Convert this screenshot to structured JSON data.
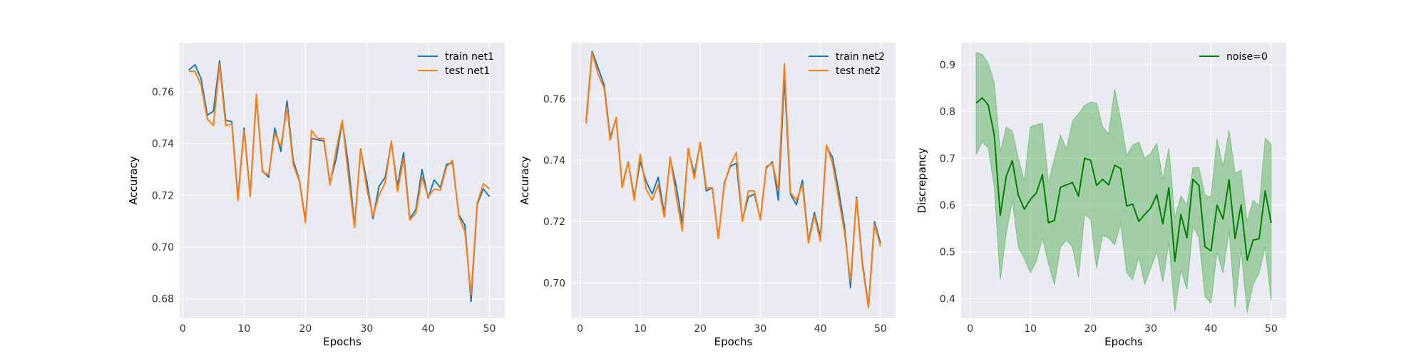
{
  "chart_data": [
    {
      "type": "line",
      "xlabel": "Epochs",
      "ylabel": "Accuracy",
      "xlim": [
        -0.5,
        52.5
      ],
      "ylim": [
        0.6725,
        0.779
      ],
      "xticks": [
        0,
        10,
        20,
        30,
        40,
        50
      ],
      "yticks": [
        0.68,
        0.7,
        0.72,
        0.74,
        0.76
      ],
      "grid": true,
      "legend": "top-right",
      "x": [
        1,
        2,
        3,
        4,
        5,
        6,
        7,
        8,
        9,
        10,
        11,
        12,
        13,
        14,
        15,
        16,
        17,
        18,
        19,
        20,
        21,
        22,
        23,
        24,
        25,
        26,
        27,
        28,
        29,
        30,
        31,
        32,
        33,
        34,
        35,
        36,
        37,
        38,
        39,
        40,
        41,
        42,
        43,
        44,
        45,
        46,
        47,
        48,
        49,
        50
      ],
      "series": [
        {
          "name": "train net1",
          "color": "#1f77b4",
          "values": [
            0.7685,
            0.7705,
            0.765,
            0.751,
            0.7525,
            0.772,
            0.749,
            0.7485,
            0.719,
            0.746,
            0.72,
            0.758,
            0.7295,
            0.727,
            0.746,
            0.737,
            0.7565,
            0.7335,
            0.726,
            0.7105,
            0.742,
            0.7415,
            0.741,
            0.725,
            0.734,
            0.7485,
            0.732,
            0.7085,
            0.7375,
            0.7255,
            0.711,
            0.7235,
            0.727,
            0.7405,
            0.7235,
            0.7365,
            0.711,
            0.7145,
            0.73,
            0.719,
            0.726,
            0.723,
            0.732,
            0.7325,
            0.7125,
            0.7085,
            0.679,
            0.7165,
            0.7225,
            0.7195
          ]
        },
        {
          "name": "test net1",
          "color": "#ff7f0e",
          "values": [
            0.768,
            0.768,
            0.7625,
            0.7495,
            0.747,
            0.7705,
            0.747,
            0.7475,
            0.718,
            0.745,
            0.7195,
            0.759,
            0.729,
            0.728,
            0.744,
            0.739,
            0.754,
            0.732,
            0.7255,
            0.7095,
            0.745,
            0.742,
            0.742,
            0.724,
            0.7375,
            0.749,
            0.7275,
            0.7075,
            0.738,
            0.7225,
            0.712,
            0.72,
            0.725,
            0.741,
            0.7215,
            0.7345,
            0.7105,
            0.713,
            0.727,
            0.7195,
            0.7225,
            0.722,
            0.731,
            0.7335,
            0.712,
            0.706,
            0.6815,
            0.717,
            0.7245,
            0.7225
          ]
        }
      ]
    },
    {
      "type": "line",
      "xlabel": "Epochs",
      "ylabel": "Accuracy",
      "xlim": [
        -1.5,
        52.5
      ],
      "ylim": [
        0.6885,
        0.7783
      ],
      "xticks": [
        0,
        10,
        20,
        30,
        40,
        50
      ],
      "yticks": [
        0.7,
        0.72,
        0.74,
        0.76
      ],
      "grid": true,
      "legend": "top-right",
      "x": [
        1,
        2,
        3,
        4,
        5,
        6,
        7,
        8,
        9,
        10,
        11,
        12,
        13,
        14,
        15,
        16,
        17,
        18,
        19,
        20,
        21,
        22,
        23,
        24,
        25,
        26,
        27,
        28,
        29,
        30,
        31,
        32,
        33,
        34,
        35,
        36,
        37,
        38,
        39,
        40,
        41,
        42,
        43,
        44,
        45,
        46,
        47,
        48,
        49,
        50
      ],
      "series": [
        {
          "name": "train net2",
          "color": "#1f77b4",
          "values": [
            0.753,
            0.7755,
            0.77,
            0.7645,
            0.7475,
            0.7535,
            0.7315,
            0.7395,
            0.728,
            0.7395,
            0.733,
            0.729,
            0.7345,
            0.7225,
            0.7405,
            0.7315,
            0.7195,
            0.7435,
            0.7355,
            0.7455,
            0.73,
            0.731,
            0.7145,
            0.7325,
            0.738,
            0.739,
            0.7205,
            0.728,
            0.729,
            0.721,
            0.7375,
            0.7395,
            0.727,
            0.767,
            0.729,
            0.7255,
            0.7335,
            0.7135,
            0.723,
            0.715,
            0.7445,
            0.741,
            0.7305,
            0.7185,
            0.6985,
            0.728,
            0.7065,
            0.6925,
            0.72,
            0.713
          ]
        },
        {
          "name": "test net2",
          "color": "#ff7f0e",
          "values": [
            0.752,
            0.775,
            0.768,
            0.7635,
            0.7465,
            0.754,
            0.731,
            0.7395,
            0.727,
            0.742,
            0.7305,
            0.727,
            0.732,
            0.7215,
            0.741,
            0.728,
            0.717,
            0.744,
            0.734,
            0.746,
            0.731,
            0.731,
            0.7145,
            0.732,
            0.7385,
            0.7425,
            0.72,
            0.73,
            0.73,
            0.7205,
            0.738,
            0.739,
            0.7305,
            0.7715,
            0.7295,
            0.727,
            0.732,
            0.713,
            0.722,
            0.7135,
            0.745,
            0.739,
            0.728,
            0.7165,
            0.7005,
            0.7275,
            0.7055,
            0.692,
            0.719,
            0.712
          ]
        }
      ]
    },
    {
      "type": "area",
      "xlabel": "Epochs",
      "ylabel": "Discrepancy",
      "xlim": [
        -1.5,
        52.5
      ],
      "ylim": [
        0.358,
        0.947
      ],
      "xticks": [
        0,
        10,
        20,
        30,
        40,
        50
      ],
      "yticks": [
        0.4,
        0.5,
        0.6,
        0.7,
        0.8,
        0.9
      ],
      "grid": true,
      "legend": "top-right",
      "x": [
        1,
        2,
        3,
        4,
        5,
        6,
        7,
        8,
        9,
        10,
        11,
        12,
        13,
        14,
        15,
        16,
        17,
        18,
        19,
        20,
        21,
        22,
        23,
        24,
        25,
        26,
        27,
        28,
        29,
        30,
        31,
        32,
        33,
        34,
        35,
        36,
        37,
        38,
        39,
        40,
        41,
        42,
        43,
        44,
        45,
        46,
        47,
        48,
        49,
        50
      ],
      "series": [
        {
          "name": "noise=0",
          "color": "#008000",
          "band_color": "#2ca02c",
          "values": [
            0.818,
            0.829,
            0.814,
            0.75,
            0.578,
            0.662,
            0.695,
            0.621,
            0.591,
            0.612,
            0.626,
            0.665,
            0.562,
            0.567,
            0.638,
            0.643,
            0.648,
            0.619,
            0.7,
            0.696,
            0.642,
            0.655,
            0.643,
            0.685,
            0.678,
            0.598,
            0.602,
            0.565,
            0.58,
            0.594,
            0.622,
            0.56,
            0.637,
            0.48,
            0.58,
            0.53,
            0.655,
            0.642,
            0.511,
            0.502,
            0.6,
            0.57,
            0.654,
            0.528,
            0.6,
            0.482,
            0.525,
            0.528,
            0.63,
            0.562
          ],
          "lower": [
            0.708,
            0.735,
            0.722,
            0.64,
            0.44,
            0.54,
            0.61,
            0.51,
            0.485,
            0.455,
            0.48,
            0.53,
            0.475,
            0.43,
            0.51,
            0.525,
            0.51,
            0.445,
            0.58,
            0.57,
            0.465,
            0.535,
            0.53,
            0.515,
            0.56,
            0.455,
            0.44,
            0.49,
            0.43,
            0.465,
            0.5,
            0.435,
            0.52,
            0.372,
            0.46,
            0.42,
            0.555,
            0.53,
            0.405,
            0.39,
            0.5,
            0.455,
            0.545,
            0.38,
            0.505,
            0.37,
            0.43,
            0.455,
            0.51,
            0.395
          ],
          "upper": [
            0.926,
            0.922,
            0.903,
            0.862,
            0.714,
            0.767,
            0.758,
            0.7,
            0.652,
            0.767,
            0.772,
            0.775,
            0.648,
            0.7,
            0.75,
            0.72,
            0.78,
            0.795,
            0.813,
            0.82,
            0.818,
            0.768,
            0.752,
            0.848,
            0.784,
            0.706,
            0.728,
            0.735,
            0.7,
            0.711,
            0.732,
            0.655,
            0.722,
            0.573,
            0.62,
            0.6,
            0.68,
            0.681,
            0.622,
            0.617,
            0.742,
            0.682,
            0.76,
            0.668,
            0.674,
            0.565,
            0.61,
            0.598,
            0.743,
            0.73
          ]
        }
      ]
    }
  ]
}
